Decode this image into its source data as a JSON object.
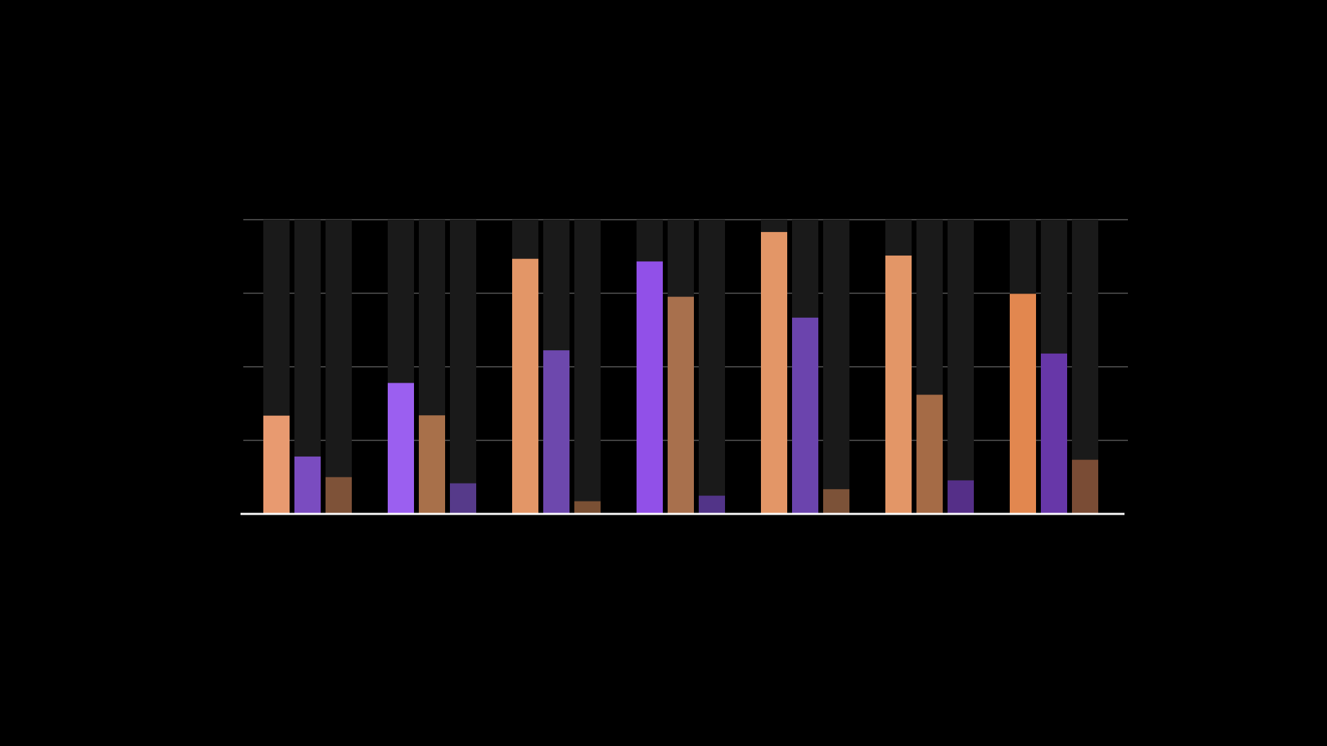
{
  "chart_data": {
    "type": "bar",
    "title": "",
    "xlabel": "",
    "ylabel": "",
    "categories": [
      "",
      "",
      "",
      "",
      "",
      "",
      ""
    ],
    "ylim": [
      0,
      100
    ],
    "grid": true,
    "legend": "none",
    "series": [
      {
        "color": "#e89a70",
        "values": [
          33.4,
          44.5,
          86.7,
          85.8,
          95.8,
          87.8,
          74.8
        ]
      },
      {
        "color": "#7a4cc0",
        "values": [
          19.5,
          33.5,
          55.6,
          73.8,
          66.7,
          40.5,
          54.5
        ]
      },
      {
        "color": "#7e5238",
        "values": [
          12.5,
          10.4,
          4.3,
          6.2,
          8.4,
          11.4,
          18.4
        ]
      }
    ],
    "bar_colors": [
      [
        "#e89a70",
        "#7a4cc0",
        "#7e5238"
      ],
      [
        "#9b5ff0",
        "#a8704a",
        "#563a8a"
      ],
      [
        "#e39667",
        "#6d48ad",
        "#7a5034"
      ],
      [
        "#9150e8",
        "#a8704d",
        "#523488"
      ],
      [
        "#e39667",
        "#6b44ad",
        "#7c5238"
      ],
      [
        "#e39667",
        "#a56b46",
        "#552f88"
      ],
      [
        "#e2874f",
        "#6737a8",
        "#7a4c35"
      ]
    ],
    "track_color": "#1a1a1a",
    "grid_color": "#5a5a5a",
    "baseline_color": "#ffffff"
  }
}
